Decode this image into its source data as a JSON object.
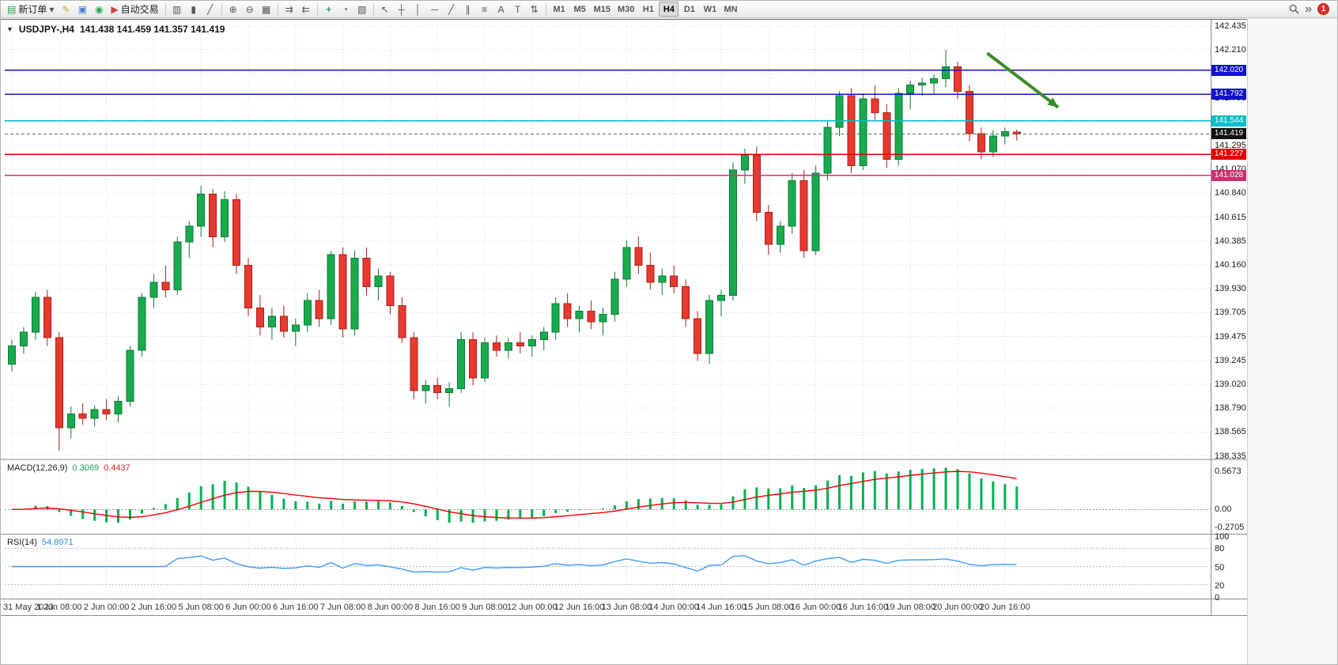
{
  "toolbar": {
    "new_order_label": "新订单",
    "autotrading_label": "自动交易",
    "timeframes": [
      "M1",
      "M5",
      "M15",
      "M30",
      "H1",
      "H4",
      "D1",
      "W1",
      "MN"
    ],
    "active_timeframe": "H4",
    "notification_count": "1",
    "icons": {
      "new_order": "▤",
      "dropdown": "▾",
      "editor": "✎",
      "profile": "▣",
      "support": "◉",
      "autotrading": "▶",
      "bar_chart": "▥",
      "candlestick": "▮",
      "line_chart": "╱",
      "zoom_in": "⊕",
      "zoom_out": "⊖",
      "tile_windows": "▦",
      "auto_scroll": "⇉",
      "chart_shift": "⇇",
      "indicators": "+",
      "periods": "◔",
      "templates": "▧",
      "cursor": "↖",
      "crosshair": "┼",
      "vline": "│",
      "hline": "─",
      "trendline": "╱",
      "channel": "∥",
      "fibonacci": "≡",
      "text": "A",
      "label": "T",
      "arrows": "⇅",
      "overflow": "»"
    }
  },
  "chart": {
    "collapse_icon": "▼",
    "symbol_period": "USDJPY-,H4",
    "ohlc_text": "141.438 141.459 141.357 141.419",
    "colors": {
      "bull": "#18ab4e",
      "bull_dark": "#0b7a35",
      "bear": "#e8392f",
      "bear_dark": "#a8211a",
      "grid": "#d9d9d9",
      "macd_hist": "#00b050",
      "macd_signal": "#ff0000",
      "rsi_line": "#3e9bff",
      "current_price_bg": "#111111",
      "frame": "#8a8a8a"
    }
  },
  "chart_data": {
    "type": "candlestick",
    "symbol": "USDJPY-",
    "period": "H4",
    "current_bar": {
      "open": 141.438,
      "high": 141.459,
      "low": 141.357,
      "close": 141.419
    },
    "price_axis_ticks": [
      "142.435",
      "142.210",
      "141.980",
      "141.750",
      "141.525",
      "141.295",
      "141.070",
      "140.840",
      "140.615",
      "140.385",
      "140.160",
      "139.930",
      "139.705",
      "139.475",
      "139.245",
      "139.020",
      "138.790",
      "138.565",
      "138.335"
    ],
    "time_axis_labels": [
      "31 May 2023",
      "1 Jun 08:00",
      "2 Jun 00:00",
      "2 Jun 16:00",
      "5 Jun 08:00",
      "6 Jun 00:00",
      "6 Jun 16:00",
      "7 Jun 08:00",
      "8 Jun 00:00",
      "8 Jun 16:00",
      "9 Jun 08:00",
      "12 Jun 00:00",
      "12 Jun 16:00",
      "13 Jun 08:00",
      "14 Jun 00:00",
      "14 Jun 16:00",
      "15 Jun 08:00",
      "16 Jun 00:00",
      "16 Jun 16:00",
      "19 Jun 08:00",
      "20 Jun 00:00",
      "20 Jun 16:00"
    ],
    "bars_per_label": 4,
    "candles": [
      [
        139.25,
        139.48,
        139.18,
        139.42
      ],
      [
        139.42,
        139.6,
        139.35,
        139.55
      ],
      [
        139.55,
        139.93,
        139.48,
        139.88
      ],
      [
        139.88,
        139.95,
        139.42,
        139.5
      ],
      [
        139.5,
        139.55,
        138.43,
        138.65
      ],
      [
        138.65,
        138.85,
        138.55,
        138.78
      ],
      [
        138.78,
        138.88,
        138.68,
        138.74
      ],
      [
        138.74,
        138.86,
        138.66,
        138.82
      ],
      [
        138.82,
        138.92,
        138.72,
        138.78
      ],
      [
        138.78,
        138.95,
        138.7,
        138.9
      ],
      [
        138.9,
        139.42,
        138.85,
        139.38
      ],
      [
        139.38,
        139.92,
        139.32,
        139.88
      ],
      [
        139.88,
        140.1,
        139.78,
        140.02
      ],
      [
        140.02,
        140.18,
        139.88,
        139.95
      ],
      [
        139.95,
        140.45,
        139.9,
        140.4
      ],
      [
        140.4,
        140.6,
        140.25,
        140.55
      ],
      [
        140.55,
        140.93,
        140.45,
        140.85
      ],
      [
        140.85,
        140.9,
        140.35,
        140.45
      ],
      [
        140.45,
        140.88,
        140.4,
        140.8
      ],
      [
        140.8,
        140.85,
        140.1,
        140.18
      ],
      [
        140.18,
        140.25,
        139.7,
        139.78
      ],
      [
        139.78,
        139.9,
        139.52,
        139.6
      ],
      [
        139.6,
        139.78,
        139.48,
        139.7
      ],
      [
        139.7,
        139.8,
        139.5,
        139.56
      ],
      [
        139.56,
        139.68,
        139.42,
        139.62
      ],
      [
        139.62,
        139.92,
        139.55,
        139.85
      ],
      [
        139.85,
        139.95,
        139.6,
        139.68
      ],
      [
        139.68,
        140.32,
        139.62,
        140.28
      ],
      [
        140.28,
        140.35,
        139.5,
        139.58
      ],
      [
        139.58,
        140.32,
        139.52,
        140.25
      ],
      [
        140.25,
        140.35,
        139.9,
        139.98
      ],
      [
        139.98,
        140.15,
        139.85,
        140.08
      ],
      [
        140.08,
        140.12,
        139.72,
        139.8
      ],
      [
        139.8,
        139.88,
        139.45,
        139.5
      ],
      [
        139.5,
        139.55,
        138.92,
        139.0
      ],
      [
        139.0,
        139.1,
        138.88,
        139.05
      ],
      [
        139.05,
        139.12,
        138.92,
        138.98
      ],
      [
        138.98,
        139.08,
        138.85,
        139.02
      ],
      [
        139.02,
        139.55,
        138.98,
        139.48
      ],
      [
        139.48,
        139.55,
        139.05,
        139.12
      ],
      [
        139.12,
        139.5,
        139.08,
        139.45
      ],
      [
        139.45,
        139.52,
        139.32,
        139.38
      ],
      [
        139.38,
        139.5,
        139.3,
        139.45
      ],
      [
        139.45,
        139.55,
        139.35,
        139.42
      ],
      [
        139.42,
        139.52,
        139.32,
        139.48
      ],
      [
        139.48,
        139.6,
        139.38,
        139.55
      ],
      [
        139.55,
        139.88,
        139.48,
        139.82
      ],
      [
        139.82,
        139.92,
        139.6,
        139.68
      ],
      [
        139.68,
        139.8,
        139.55,
        139.75
      ],
      [
        139.75,
        139.85,
        139.58,
        139.65
      ],
      [
        139.65,
        139.78,
        139.52,
        139.72
      ],
      [
        139.72,
        140.12,
        139.65,
        140.05
      ],
      [
        140.05,
        140.42,
        139.98,
        140.35
      ],
      [
        140.35,
        140.45,
        140.1,
        140.18
      ],
      [
        140.18,
        140.3,
        139.95,
        140.02
      ],
      [
        140.02,
        140.15,
        139.9,
        140.08
      ],
      [
        140.08,
        140.18,
        139.92,
        139.98
      ],
      [
        139.98,
        140.05,
        139.6,
        139.68
      ],
      [
        139.68,
        139.75,
        139.28,
        139.35
      ],
      [
        139.35,
        139.9,
        139.25,
        139.85
      ],
      [
        139.85,
        139.95,
        139.7,
        139.9
      ],
      [
        139.9,
        141.15,
        139.85,
        141.08
      ],
      [
        141.08,
        141.28,
        140.95,
        141.22
      ],
      [
        141.22,
        141.3,
        140.6,
        140.68
      ],
      [
        140.68,
        140.75,
        140.28,
        140.38
      ],
      [
        140.38,
        140.6,
        140.3,
        140.55
      ],
      [
        140.55,
        141.05,
        140.48,
        140.98
      ],
      [
        140.98,
        141.08,
        140.25,
        140.32
      ],
      [
        140.32,
        141.12,
        140.28,
        141.05
      ],
      [
        141.05,
        141.55,
        140.98,
        141.48
      ],
      [
        141.48,
        141.82,
        141.4,
        141.78
      ],
      [
        141.78,
        141.85,
        141.05,
        141.12
      ],
      [
        141.12,
        141.8,
        141.08,
        141.75
      ],
      [
        141.75,
        141.88,
        141.55,
        141.62
      ],
      [
        141.62,
        141.7,
        141.1,
        141.18
      ],
      [
        141.18,
        141.85,
        141.12,
        141.8
      ],
      [
        141.8,
        141.92,
        141.65,
        141.88
      ],
      [
        141.88,
        141.95,
        141.78,
        141.9
      ],
      [
        141.9,
        141.98,
        141.8,
        141.94
      ],
      [
        141.94,
        142.21,
        141.86,
        142.05
      ],
      [
        142.05,
        142.1,
        141.75,
        141.82
      ],
      [
        141.82,
        141.88,
        141.35,
        141.42
      ],
      [
        141.42,
        141.48,
        141.18,
        141.25
      ],
      [
        141.25,
        141.45,
        141.2,
        141.4
      ],
      [
        141.4,
        141.48,
        141.32,
        141.44
      ],
      [
        141.438,
        141.459,
        141.357,
        141.419
      ]
    ],
    "horizontal_lines": [
      {
        "price": 142.02,
        "label": "142.020",
        "color": "#1212c8"
      },
      {
        "price": 141.792,
        "label": "141.792",
        "color": "#1212c8"
      },
      {
        "price": 141.544,
        "label": "141.544",
        "color": "#00c0c8"
      },
      {
        "price": 141.227,
        "label": "141.227",
        "color": "#e00000"
      },
      {
        "price": 141.028,
        "label": "141.028",
        "color": "#d03070"
      }
    ],
    "current_price": {
      "value": 141.419,
      "label": "141.419"
    },
    "annotations": [
      {
        "type": "arrow",
        "color": "#3c8a28",
        "from": {
          "bar": 82.5,
          "price": 142.18
        },
        "to": {
          "bar": 88.5,
          "price": 141.67
        }
      }
    ],
    "indicators": [
      {
        "name": "MACD",
        "label": "MACD(12,26,9)",
        "params": [
          12,
          26,
          9
        ],
        "value_labels": [
          "0.3069",
          "0.4437"
        ],
        "scale_labels": [
          "0.5673",
          "0.00",
          "-0.2705"
        ],
        "scale": {
          "max": 0.5673,
          "min": -0.2705
        }
      },
      {
        "name": "RSI",
        "label": "RSI(14)",
        "params": [
          14
        ],
        "value_labels": [
          "54.8971"
        ],
        "scale_labels": [
          "100",
          "80",
          "50",
          "20",
          "0"
        ],
        "levels": [
          80,
          50,
          20
        ]
      }
    ]
  }
}
